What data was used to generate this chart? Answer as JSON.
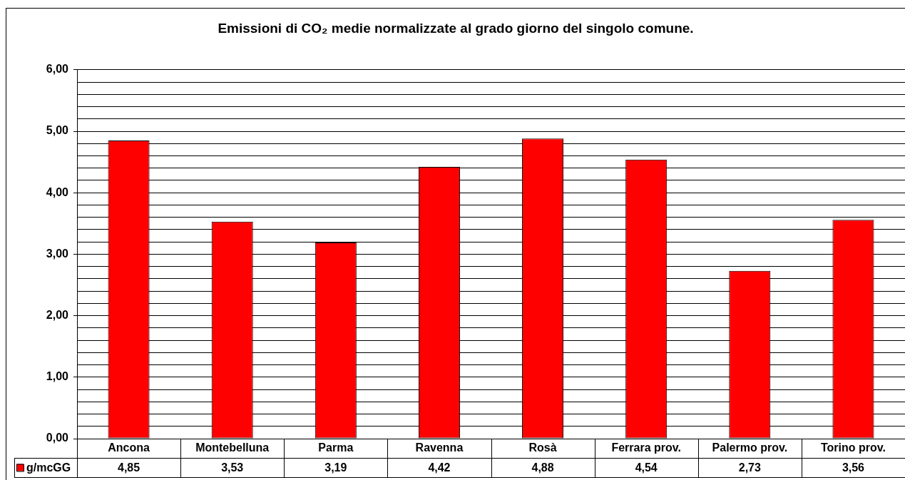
{
  "chart_data": {
    "type": "bar",
    "title": "Emissioni di CO₂ medie normalizzate al grado giorno del singolo comune.",
    "categories": [
      "Ancona",
      "Montebelluna",
      "Parma",
      "Ravenna",
      "Rosà",
      "Ferrara prov.",
      "Palermo prov.",
      "Torino prov."
    ],
    "series": [
      {
        "name": "g/mcGG",
        "color": "#ff0000",
        "values": [
          4.85,
          3.53,
          3.19,
          4.42,
          4.88,
          4.54,
          2.73,
          3.56
        ],
        "value_labels": [
          "4,85",
          "3,53",
          "3,19",
          "4,42",
          "4,88",
          "4,54",
          "2,73",
          "3,56"
        ]
      }
    ],
    "ylim": [
      0,
      6
    ],
    "yticks": [
      {
        "value": 0,
        "label": "0,00"
      },
      {
        "value": 0.2,
        "label": null
      },
      {
        "value": 0.4,
        "label": null
      },
      {
        "value": 0.6,
        "label": null
      },
      {
        "value": 0.8,
        "label": null
      },
      {
        "value": 1,
        "label": "1,00"
      },
      {
        "value": 1.2,
        "label": null
      },
      {
        "value": 1.4,
        "label": null
      },
      {
        "value": 1.6,
        "label": null
      },
      {
        "value": 1.8,
        "label": null
      },
      {
        "value": 2,
        "label": "2,00"
      },
      {
        "value": 2.2,
        "label": null
      },
      {
        "value": 2.4,
        "label": null
      },
      {
        "value": 2.6,
        "label": null
      },
      {
        "value": 2.8,
        "label": null
      },
      {
        "value": 3,
        "label": "3,00"
      },
      {
        "value": 3.2,
        "label": null
      },
      {
        "value": 3.4,
        "label": null
      },
      {
        "value": 3.6,
        "label": null
      },
      {
        "value": 3.8,
        "label": null
      },
      {
        "value": 4,
        "label": "4,00"
      },
      {
        "value": 4.2,
        "label": null
      },
      {
        "value": 4.4,
        "label": null
      },
      {
        "value": 4.6,
        "label": null
      },
      {
        "value": 4.8,
        "label": null
      },
      {
        "value": 5,
        "label": "5,00"
      },
      {
        "value": 5.2,
        "label": null
      },
      {
        "value": 5.4,
        "label": null
      },
      {
        "value": 5.6,
        "label": null
      },
      {
        "value": 5.8,
        "label": null
      },
      {
        "value": 6,
        "label": "6,00"
      }
    ],
    "grid": "y",
    "legend": "bottom left"
  }
}
